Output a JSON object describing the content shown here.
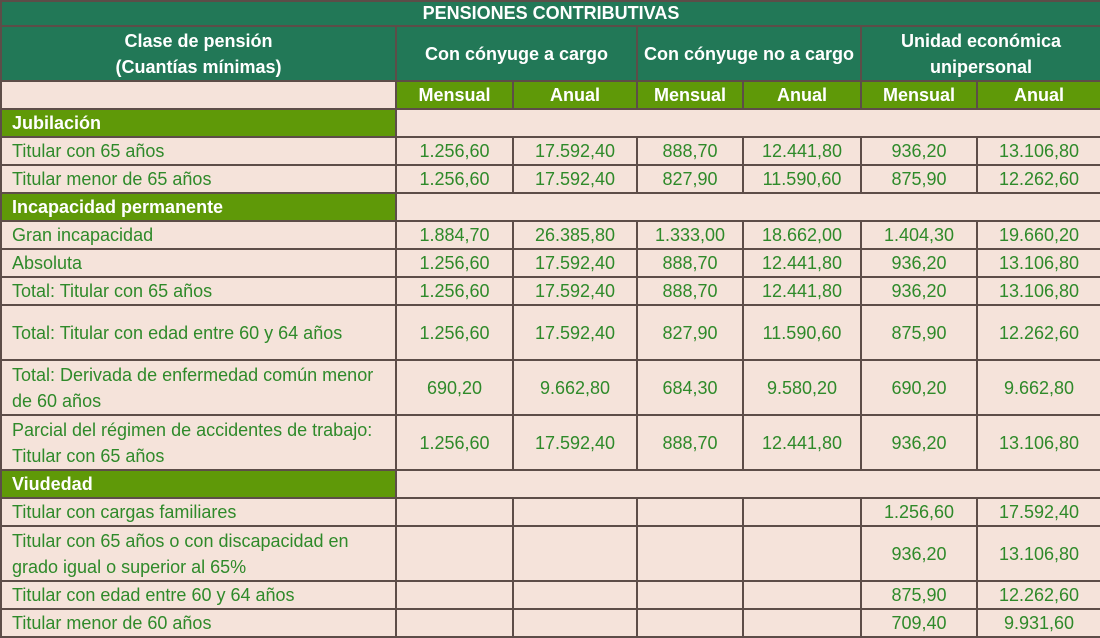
{
  "title": "PENSIONES CONTRIBUTIVAS",
  "headers": {
    "clase_line1": "Clase de pensión",
    "clase_line2": "(Cuantías mínimas)",
    "groups": [
      "Con cónyuge a cargo",
      "Con cónyuge no a cargo",
      "Unidad económica unipersonal"
    ],
    "sub": [
      "Mensual",
      "Anual",
      "Mensual",
      "Anual",
      "Mensual",
      "Anual"
    ]
  },
  "sections": [
    {
      "name": "Jubilación",
      "rows": [
        {
          "label": "Titular con 65 años",
          "values": [
            "1.256,60",
            "17.592,40",
            "888,70",
            "12.441,80",
            "936,20",
            "13.106,80"
          ]
        },
        {
          "label": "Titular menor de 65 años",
          "values": [
            "1.256,60",
            "17.592,40",
            "827,90",
            "11.590,60",
            "875,90",
            "12.262,60"
          ]
        }
      ]
    },
    {
      "name": "Incapacidad permanente",
      "rows": [
        {
          "label": "Gran incapacidad",
          "values": [
            "1.884,70",
            "26.385,80",
            "1.333,00",
            "18.662,00",
            "1.404,30",
            "19.660,20"
          ]
        },
        {
          "label": "Absoluta",
          "values": [
            "1.256,60",
            "17.592,40",
            "888,70",
            "12.441,80",
            "936,20",
            "13.106,80"
          ]
        },
        {
          "label": "Total: Titular con 65 años",
          "values": [
            "1.256,60",
            "17.592,40",
            "888,70",
            "12.441,80",
            "936,20",
            "13.106,80"
          ]
        },
        {
          "label": "Total: Titular con edad entre 60 y 64 años",
          "values": [
            "1.256,60",
            "17.592,40",
            "827,90",
            "11.590,60",
            "875,90",
            "12.262,60"
          ],
          "tall": true
        },
        {
          "label": "Total: Derivada de enfermedad común menor de 60 años",
          "values": [
            "690,20",
            "9.662,80",
            "684,30",
            "9.580,20",
            "690,20",
            "9.662,80"
          ],
          "tall": true
        },
        {
          "label": "Parcial del régimen de accidentes de trabajo: Titular con 65 años",
          "values": [
            "1.256,60",
            "17.592,40",
            "888,70",
            "12.441,80",
            "936,20",
            "13.106,80"
          ],
          "tall": true
        }
      ]
    },
    {
      "name": "Viudedad",
      "rows": [
        {
          "label": "Titular con cargas familiares",
          "values": [
            "",
            "",
            "",
            "",
            "1.256,60",
            "17.592,40"
          ]
        },
        {
          "label": "Titular con 65 años o con discapacidad en grado igual o superior al 65%",
          "values": [
            "",
            "",
            "",
            "",
            "936,20",
            "13.106,80"
          ],
          "tall": true
        },
        {
          "label": "Titular con edad entre 60 y 64 años",
          "values": [
            "",
            "",
            "",
            "",
            "875,90",
            "12.262,60"
          ]
        },
        {
          "label": "Titular menor de 60 años",
          "values": [
            "",
            "",
            "",
            "",
            "709,40",
            "9.931,60"
          ]
        }
      ]
    }
  ]
}
